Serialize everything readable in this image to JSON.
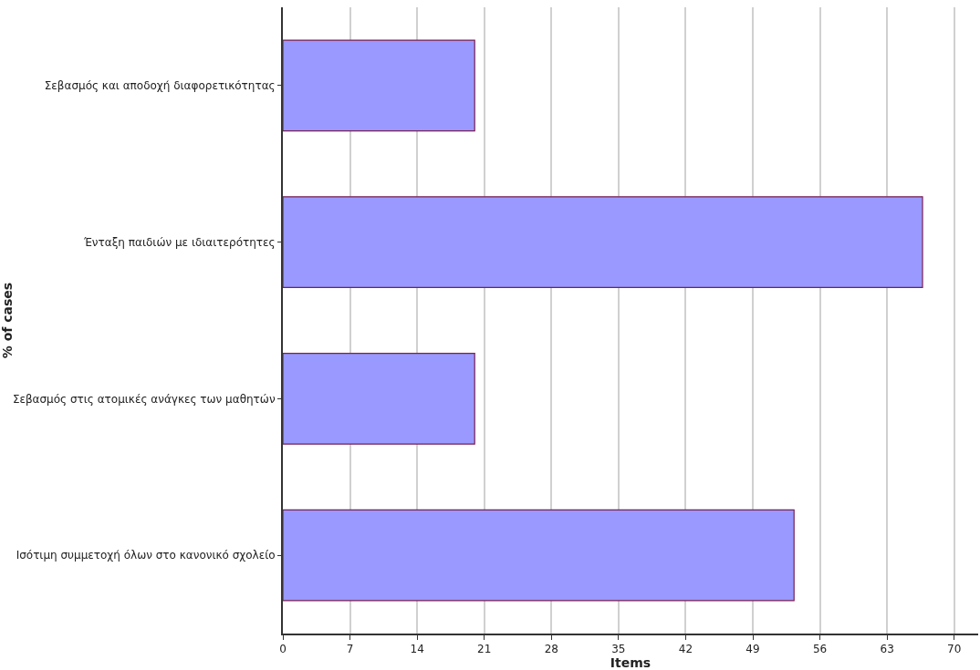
{
  "chart_data": {
    "type": "bar",
    "orientation": "horizontal",
    "xlabel": "Items",
    "ylabel": "% of cases",
    "categories": [
      "Σεβασμός και αποδοχή διαφορετικότητας",
      "Ένταξη παιδιών με ιδιαιτερότητες",
      "Σεβασμός στις ατομικές ανάγκες των μαθητών",
      "Ισότιμη συμμετοχή όλων στο κανονικό σχολείο"
    ],
    "values": [
      20,
      66.7,
      20,
      53.3
    ],
    "color": "#9999ff",
    "xlim": [
      0,
      72.5
    ],
    "xticks": [
      0,
      7,
      14,
      21,
      28,
      35,
      42,
      49,
      56,
      63,
      70
    ],
    "grid": "x",
    "legend": false
  }
}
